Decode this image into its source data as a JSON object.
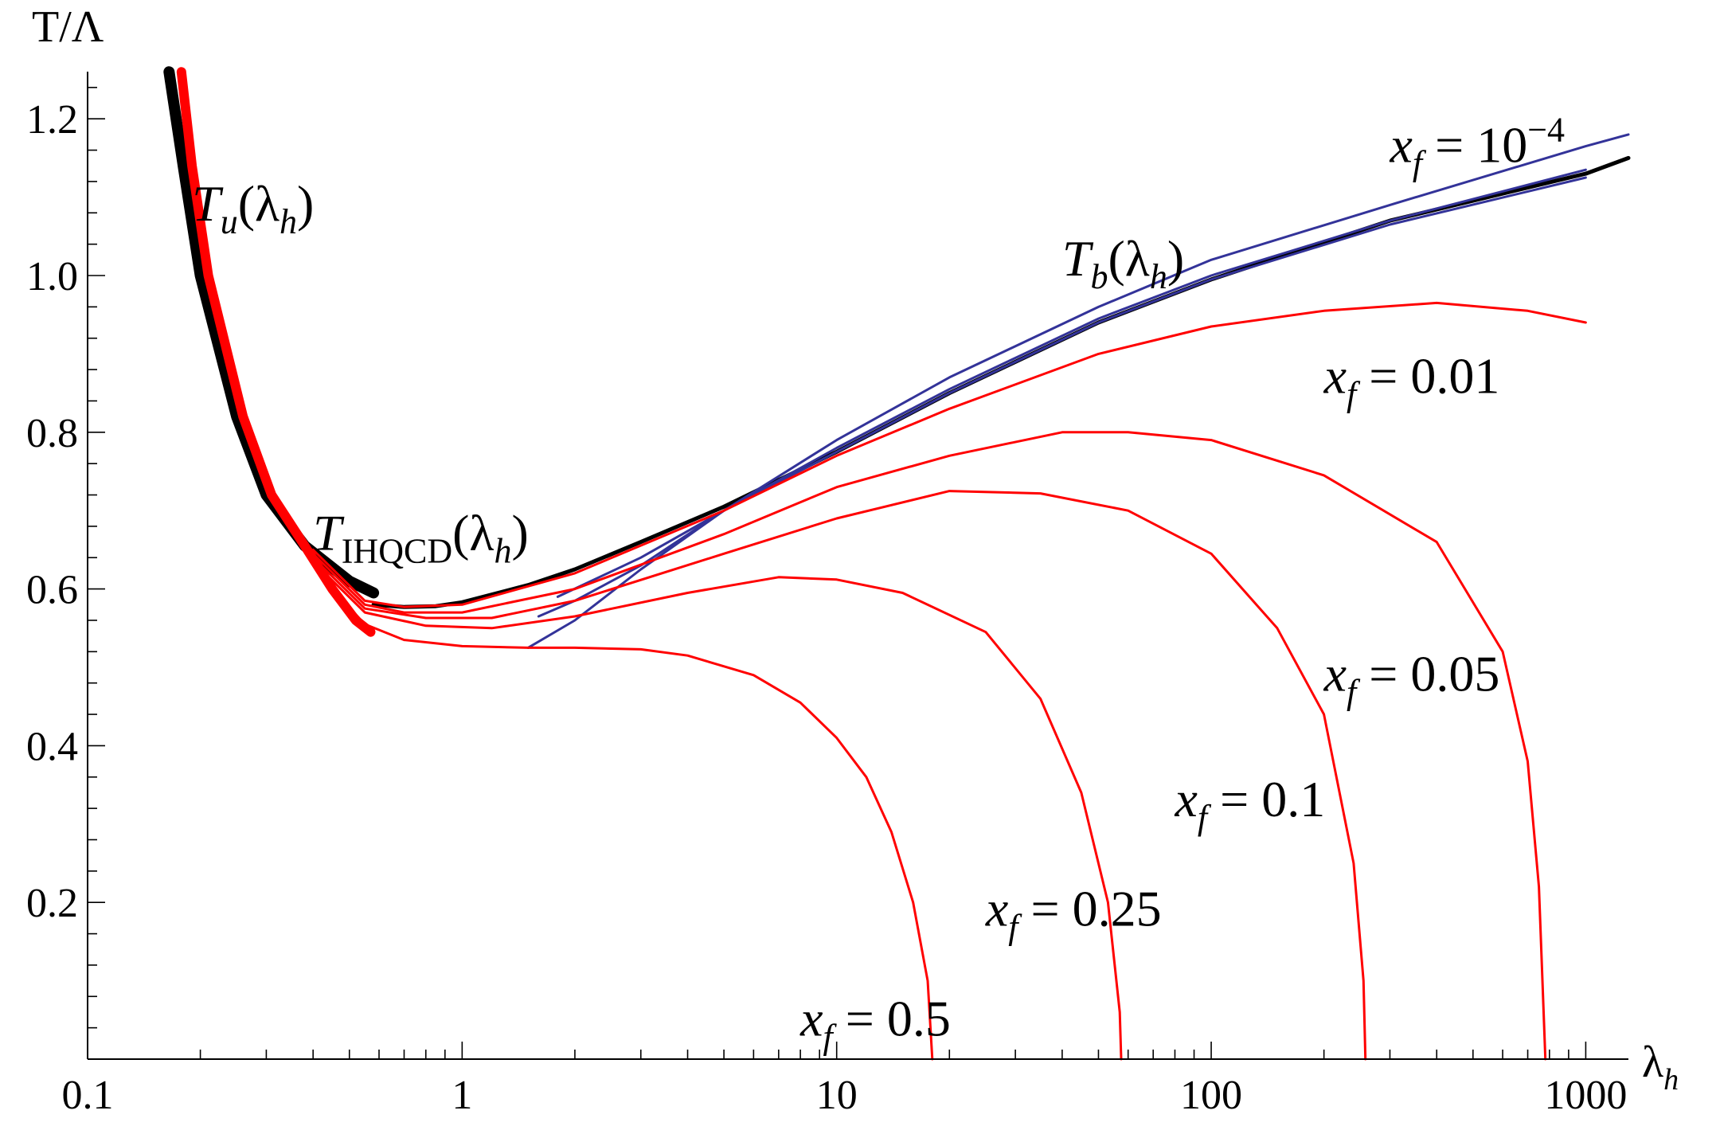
{
  "chart_data": {
    "type": "line",
    "xlabel": "λh",
    "ylabel": "T/Λ",
    "x_scale": "log",
    "xlim": [
      0.1,
      1300
    ],
    "ylim": [
      0,
      1.25
    ],
    "x_ticks": [
      0.1,
      1,
      10,
      100,
      1000
    ],
    "x_tick_labels": [
      "0.1",
      "1",
      "10",
      "100",
      "1000"
    ],
    "y_ticks": [
      0.2,
      0.4,
      0.6,
      0.8,
      1.0,
      1.2
    ],
    "y_tick_labels": [
      "0.2",
      "0.4",
      "0.6",
      "0.8",
      "1.0",
      "1.2"
    ],
    "grid": false,
    "colors": {
      "red": "#ff0000",
      "blue": "#333399",
      "black": "#000000"
    },
    "series": [
      {
        "color": "black",
        "width": 14,
        "points": [
          [
            0.165,
            1.26
          ],
          [
            0.18,
            1.14
          ],
          [
            0.2,
            1.0
          ],
          [
            0.25,
            0.82
          ],
          [
            0.3,
            0.72
          ],
          [
            0.38,
            0.655
          ],
          [
            0.5,
            0.61
          ],
          [
            0.58,
            0.595
          ]
        ]
      },
      {
        "color": "red",
        "width": 12,
        "points": [
          [
            0.178,
            1.26
          ],
          [
            0.19,
            1.14
          ],
          [
            0.21,
            1.0
          ],
          [
            0.26,
            0.82
          ],
          [
            0.31,
            0.72
          ],
          [
            0.38,
            0.655
          ],
          [
            0.45,
            0.6
          ],
          [
            0.52,
            0.56
          ],
          [
            0.57,
            0.545
          ]
        ]
      },
      {
        "color": "black",
        "width": 5,
        "points": [
          [
            0.58,
            0.58
          ],
          [
            0.7,
            0.577
          ],
          [
            0.85,
            0.578
          ],
          [
            1.0,
            0.583
          ],
          [
            1.5,
            0.605
          ],
          [
            2,
            0.625
          ],
          [
            3,
            0.66
          ],
          [
            5,
            0.705
          ],
          [
            10,
            0.775
          ],
          [
            20,
            0.85
          ],
          [
            50,
            0.94
          ],
          [
            100,
            0.995
          ],
          [
            300,
            1.07
          ],
          [
            1000,
            1.13
          ],
          [
            1300,
            1.15
          ]
        ]
      },
      {
        "color": "blue",
        "width": 3,
        "points": [
          [
            1.5,
            0.525
          ],
          [
            2,
            0.56
          ],
          [
            3,
            0.625
          ],
          [
            5,
            0.7
          ],
          [
            10,
            0.79
          ],
          [
            20,
            0.87
          ],
          [
            50,
            0.96
          ],
          [
            100,
            1.02
          ],
          [
            300,
            1.09
          ],
          [
            1000,
            1.165
          ],
          [
            1300,
            1.18
          ]
        ]
      },
      {
        "color": "blue",
        "width": 3,
        "points": [
          [
            1.6,
            0.565
          ],
          [
            2,
            0.585
          ],
          [
            3,
            0.63
          ],
          [
            5,
            0.7
          ],
          [
            10,
            0.78
          ],
          [
            20,
            0.855
          ],
          [
            50,
            0.945
          ],
          [
            100,
            1.0
          ],
          [
            300,
            1.07
          ],
          [
            1000,
            1.135
          ]
        ]
      },
      {
        "color": "blue",
        "width": 3,
        "points": [
          [
            1.8,
            0.59
          ],
          [
            3,
            0.64
          ],
          [
            5,
            0.7
          ],
          [
            10,
            0.775
          ],
          [
            20,
            0.85
          ],
          [
            50,
            0.94
          ],
          [
            100,
            0.995
          ],
          [
            300,
            1.065
          ],
          [
            1000,
            1.125
          ]
        ]
      },
      {
        "color": "red",
        "width": 3,
        "points": [
          [
            0.4,
            0.65
          ],
          [
            0.55,
            0.585
          ],
          [
            0.7,
            0.577
          ],
          [
            1.0,
            0.58
          ],
          [
            2,
            0.62
          ],
          [
            5,
            0.7
          ],
          [
            10,
            0.77
          ],
          [
            20,
            0.83
          ],
          [
            50,
            0.9
          ],
          [
            100,
            0.935
          ],
          [
            200,
            0.955
          ],
          [
            400,
            0.965
          ],
          [
            700,
            0.955
          ],
          [
            1000,
            0.94
          ]
        ]
      },
      {
        "color": "red",
        "width": 3,
        "points": [
          [
            0.4,
            0.645
          ],
          [
            0.55,
            0.58
          ],
          [
            0.7,
            0.57
          ],
          [
            1.0,
            0.57
          ],
          [
            2,
            0.6
          ],
          [
            5,
            0.67
          ],
          [
            10,
            0.73
          ],
          [
            20,
            0.77
          ],
          [
            40,
            0.8
          ],
          [
            60,
            0.8
          ],
          [
            100,
            0.79
          ],
          [
            200,
            0.745
          ],
          [
            400,
            0.66
          ],
          [
            600,
            0.52
          ],
          [
            700,
            0.38
          ],
          [
            750,
            0.22
          ],
          [
            780,
            0.0
          ]
        ]
      },
      {
        "color": "red",
        "width": 3,
        "points": [
          [
            0.4,
            0.64
          ],
          [
            0.55,
            0.575
          ],
          [
            0.8,
            0.563
          ],
          [
            1.2,
            0.563
          ],
          [
            2,
            0.585
          ],
          [
            5,
            0.645
          ],
          [
            10,
            0.69
          ],
          [
            20,
            0.725
          ],
          [
            35,
            0.722
          ],
          [
            60,
            0.7
          ],
          [
            100,
            0.645
          ],
          [
            150,
            0.55
          ],
          [
            200,
            0.44
          ],
          [
            240,
            0.25
          ],
          [
            255,
            0.1
          ],
          [
            258,
            0.0
          ]
        ]
      },
      {
        "color": "red",
        "width": 3,
        "points": [
          [
            0.4,
            0.635
          ],
          [
            0.55,
            0.57
          ],
          [
            0.8,
            0.553
          ],
          [
            1.2,
            0.55
          ],
          [
            2,
            0.565
          ],
          [
            4,
            0.595
          ],
          [
            7,
            0.615
          ],
          [
            10,
            0.612
          ],
          [
            15,
            0.595
          ],
          [
            25,
            0.545
          ],
          [
            35,
            0.46
          ],
          [
            45,
            0.34
          ],
          [
            53,
            0.2
          ],
          [
            57,
            0.06
          ],
          [
            57.5,
            0.0
          ]
        ]
      },
      {
        "color": "red",
        "width": 3,
        "points": [
          [
            0.45,
            0.6
          ],
          [
            0.55,
            0.555
          ],
          [
            0.7,
            0.535
          ],
          [
            1.0,
            0.527
          ],
          [
            1.5,
            0.525
          ],
          [
            2,
            0.525
          ],
          [
            3,
            0.523
          ],
          [
            4,
            0.515
          ],
          [
            6,
            0.49
          ],
          [
            8,
            0.455
          ],
          [
            10,
            0.41
          ],
          [
            12,
            0.36
          ],
          [
            14,
            0.29
          ],
          [
            16,
            0.2
          ],
          [
            17.5,
            0.1
          ],
          [
            18,
            0.0
          ]
        ]
      }
    ],
    "annotations": [
      {
        "base": "x",
        "sub": "f",
        "rest": " = 10",
        "sup": "−4",
        "x": 300,
        "y": 1.145
      },
      {
        "base": "T",
        "sub": "b",
        "rest": "(λ",
        "rest_sub": "h",
        "tail": ")",
        "x": 40,
        "y": 1.0
      },
      {
        "base": "x",
        "sub": "f",
        "rest": " = 0.01",
        "x": 200,
        "y": 0.85
      },
      {
        "base": "T",
        "sub": "u",
        "rest": "(λ",
        "rest_sub": "h",
        "tail": ")",
        "x": 0.19,
        "y": 1.07
      },
      {
        "base": "T",
        "sub": "IHQCD",
        "rest": "(λ",
        "rest_sub": "h",
        "tail": ")",
        "x": 0.4,
        "y": 0.65
      },
      {
        "base": "x",
        "sub": "f",
        "rest": " = 0.05",
        "x": 200,
        "y": 0.47
      },
      {
        "base": "x",
        "sub": "f",
        "rest": " = 0.1",
        "x": 80,
        "y": 0.31
      },
      {
        "base": "x",
        "sub": "f",
        "rest": " = 0.25",
        "x": 25,
        "y": 0.17
      },
      {
        "base": "x",
        "sub": "f",
        "rest": " = 0.5",
        "x": 8,
        "y": 0.03
      }
    ]
  }
}
